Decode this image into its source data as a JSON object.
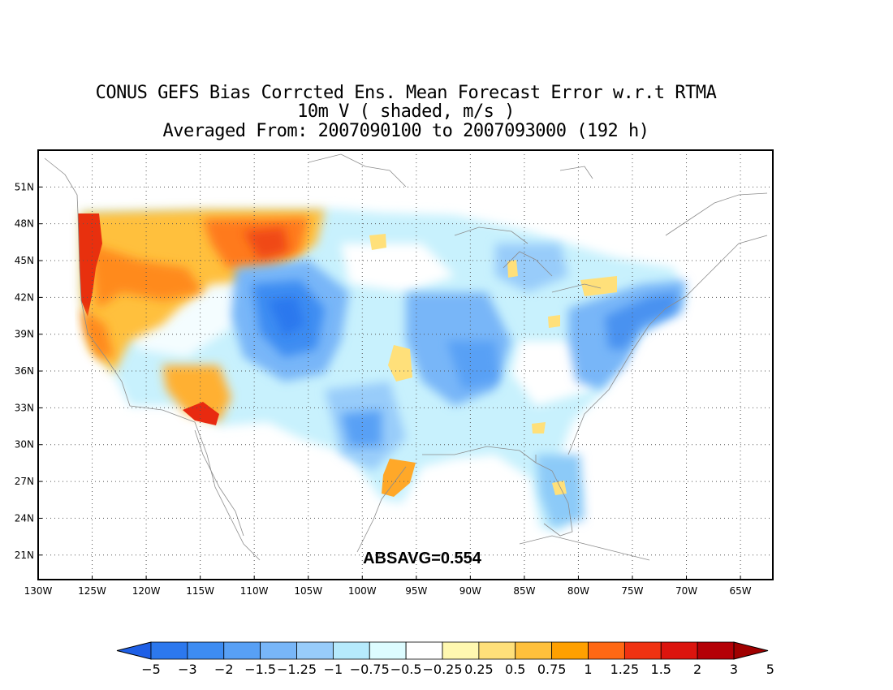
{
  "title": {
    "line1": "CONUS GEFS Bias Corrcted Ens. Mean Forecast Error w.r.t RTMA",
    "line2": "10m V ( shaded, m/s )",
    "line3": "Averaged From: 2007090100 to 2007093000 (192 h)"
  },
  "annotation": "ABSAVG=0.554",
  "axes": {
    "lat_labels": [
      "51N",
      "48N",
      "45N",
      "42N",
      "39N",
      "36N",
      "33N",
      "30N",
      "27N",
      "24N",
      "21N"
    ],
    "lat_values": [
      51,
      48,
      45,
      42,
      39,
      36,
      33,
      30,
      27,
      24,
      21
    ],
    "lon_labels": [
      "130W",
      "125W",
      "120W",
      "115W",
      "110W",
      "105W",
      "100W",
      "95W",
      "90W",
      "85W",
      "80W",
      "75W",
      "70W",
      "65W"
    ],
    "lon_values": [
      -130,
      -125,
      -120,
      -115,
      -110,
      -105,
      -100,
      -95,
      -90,
      -85,
      -80,
      -75,
      -70,
      -65
    ],
    "lon_range": [
      -130,
      -62
    ],
    "lat_range": [
      19,
      54
    ],
    "grid": "dotted"
  },
  "colorbar": {
    "labels": [
      "−5",
      "−3",
      "−2",
      "−1.5",
      "−1.25",
      "−1",
      "−0.75",
      "−0.5",
      "−0.25",
      "0.25",
      "0.5",
      "0.75",
      "1",
      "1.25",
      "1.5",
      "2",
      "3",
      "5"
    ],
    "colors": [
      "#1e5fe6",
      "#2c78ee",
      "#3d8cf2",
      "#58a0f5",
      "#78b6f8",
      "#98ccfa",
      "#b6eafc",
      "#ddfcff",
      "#ffffff",
      "#fff8b0",
      "#ffe07a",
      "#ffc03c",
      "#ffa000",
      "#ff6814",
      "#f03212",
      "#dc140e",
      "#b40006",
      "#8c0000"
    ],
    "under_color": "#1e5fe6",
    "over_color": "#a00000"
  },
  "field": {
    "regions": [
      {
        "name": "pacific-nw-coast-warm",
        "value": 2.5,
        "color": "#e8300e"
      },
      {
        "name": "oregon-interior-warm",
        "value": 1.5,
        "color": "#ff7018"
      },
      {
        "name": "montana-warm",
        "value": 1.25,
        "color": "#ff9a1e"
      },
      {
        "name": "arizona-warm",
        "value": 2,
        "color": "#e82a10"
      },
      {
        "name": "rockies-cold",
        "value": -1.5,
        "color": "#3a86ee"
      },
      {
        "name": "plains-cool",
        "value": -0.75,
        "color": "#a8e0fb"
      },
      {
        "name": "mississippi-cold",
        "value": -1,
        "color": "#6aaaf4"
      },
      {
        "name": "east-coast-cold",
        "value": -1.25,
        "color": "#4a92f0"
      },
      {
        "name": "texas-coast-warm",
        "value": 1,
        "color": "#ffa828"
      },
      {
        "name": "florida-cool",
        "value": -0.75,
        "color": "#8ccaf8"
      }
    ]
  }
}
